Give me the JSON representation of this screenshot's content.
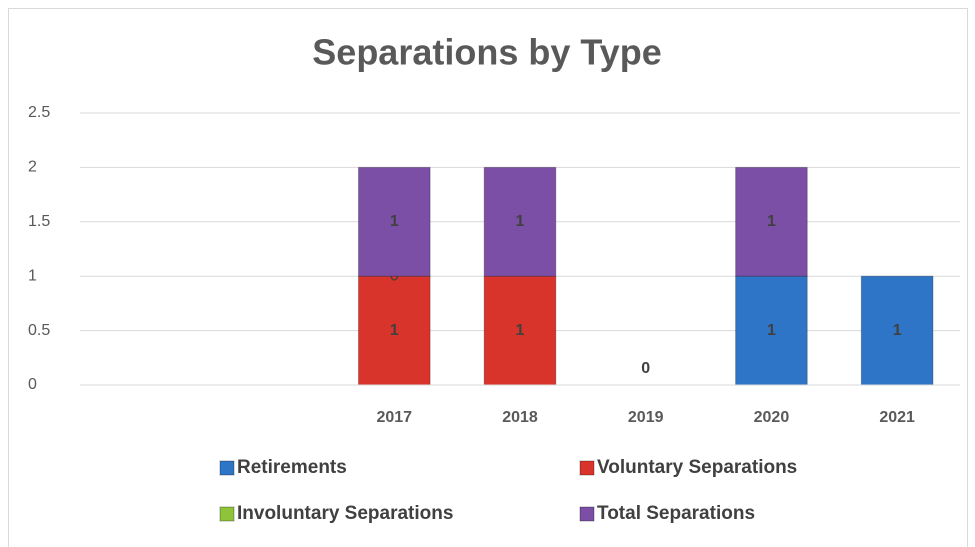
{
  "chart_data": {
    "type": "bar",
    "stacked": true,
    "title": "Separations by Type",
    "categories": [
      null,
      null,
      "2017",
      "2018",
      "2019",
      "2020",
      "2021"
    ],
    "series": [
      {
        "name": "Retirements",
        "color": "#2e75c8",
        "values": [
          null,
          null,
          null,
          null,
          0,
          1,
          1
        ]
      },
      {
        "name": "Voluntary Separations",
        "color": "#d9342b",
        "values": [
          null,
          null,
          1,
          1,
          null,
          null,
          null
        ]
      },
      {
        "name": "Involuntary Separations",
        "color": "#8fc33a",
        "values": [
          null,
          null,
          0,
          null,
          null,
          null,
          null
        ]
      },
      {
        "name": "Total Separations",
        "color": "#7b4fa6",
        "values": [
          null,
          null,
          1,
          1,
          null,
          1,
          null
        ]
      }
    ],
    "ylim": [
      0,
      2.5
    ],
    "yticks": [
      0,
      0.5,
      1,
      1.5,
      2,
      2.5
    ],
    "grid": true,
    "legend": "bottom"
  }
}
